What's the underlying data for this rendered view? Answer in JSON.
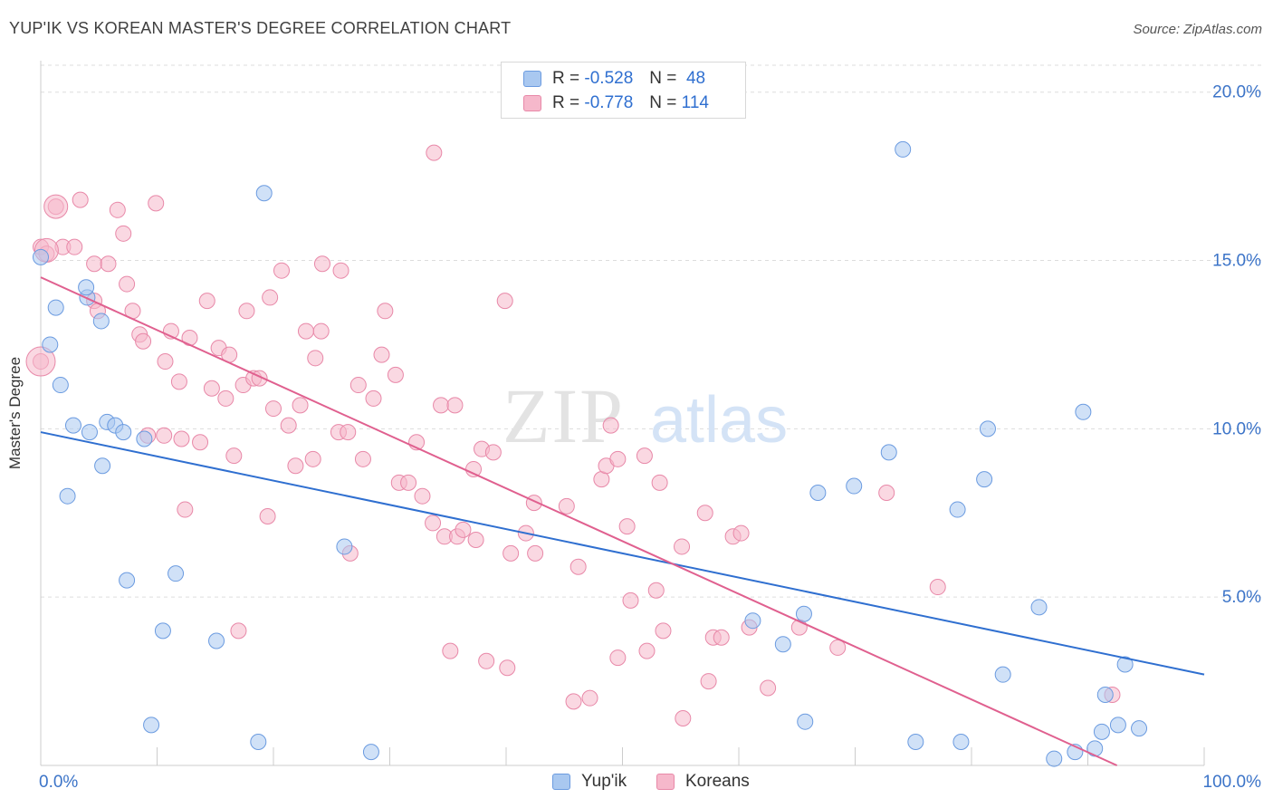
{
  "title": "YUP'IK VS KOREAN MASTER'S DEGREE CORRELATION CHART",
  "source": "Source: ZipAtlas.com",
  "watermark": {
    "zip": "ZIP",
    "atlas": "atlas"
  },
  "legend": {
    "r_label": "R =",
    "n_label": "N =",
    "rows": [
      {
        "r": "-0.528",
        "n": "48"
      },
      {
        "r": "-0.778",
        "n": "114"
      }
    ]
  },
  "colors": {
    "yupik_fill": "#a9c8f0",
    "yupik_stroke": "#6b9be0",
    "yupik_line": "#2f6fd0",
    "korean_fill": "#f6b8cb",
    "korean_stroke": "#e888a8",
    "korean_line": "#e0608f",
    "axis_text": "#3c74c8",
    "grid": "#dddddd"
  },
  "chart_data": {
    "type": "scatter",
    "title": "YUP'IK VS KOREAN MASTER'S DEGREE CORRELATION CHART",
    "xlabel": "",
    "ylabel": "Master's Degree",
    "xlim": [
      0,
      100
    ],
    "ylim": [
      0,
      20.8
    ],
    "x_tick_labels": [
      "0.0%",
      "100.0%"
    ],
    "y_ticks": [
      5,
      10,
      15,
      20
    ],
    "y_tick_labels": [
      "5.0%",
      "10.0%",
      "15.0%",
      "20.0%"
    ],
    "grid": true,
    "legend_position": "bottom-center",
    "series": [
      {
        "name": "Yup'ik",
        "r": -0.528,
        "n": 48,
        "trend": {
          "x": [
            0,
            100
          ],
          "y": [
            9.9,
            2.7
          ]
        },
        "points": [
          [
            0,
            15.1
          ],
          [
            1.3,
            13.6
          ],
          [
            0.8,
            12.5
          ],
          [
            1.7,
            11.3
          ],
          [
            2.8,
            10.1
          ],
          [
            4.2,
            9.9
          ],
          [
            5.7,
            10.2
          ],
          [
            6.4,
            10.1
          ],
          [
            7.1,
            9.9
          ],
          [
            8.9,
            9.7
          ],
          [
            4.0,
            13.9
          ],
          [
            3.9,
            14.2
          ],
          [
            5.2,
            13.2
          ],
          [
            2.3,
            8.0
          ],
          [
            5.3,
            8.9
          ],
          [
            7.4,
            5.5
          ],
          [
            11.6,
            5.7
          ],
          [
            10.5,
            4.0
          ],
          [
            15.1,
            3.7
          ],
          [
            9.5,
            1.2
          ],
          [
            19.2,
            17.0
          ],
          [
            18.7,
            0.7
          ],
          [
            26.1,
            6.5
          ],
          [
            28.4,
            0.4
          ],
          [
            74.1,
            18.3
          ],
          [
            65.6,
            4.5
          ],
          [
            63.8,
            3.6
          ],
          [
            69.9,
            8.3
          ],
          [
            72.9,
            9.3
          ],
          [
            78.8,
            7.6
          ],
          [
            81.1,
            8.5
          ],
          [
            81.4,
            10.0
          ],
          [
            61.2,
            4.3
          ],
          [
            89.6,
            10.5
          ],
          [
            85.8,
            4.7
          ],
          [
            82.7,
            2.7
          ],
          [
            87.1,
            0.2
          ],
          [
            88.9,
            0.4
          ],
          [
            93.2,
            3.0
          ],
          [
            91.5,
            2.1
          ],
          [
            92.6,
            1.2
          ],
          [
            94.4,
            1.1
          ],
          [
            65.7,
            1.3
          ],
          [
            75.2,
            0.7
          ],
          [
            79.1,
            0.7
          ],
          [
            66.8,
            8.1
          ],
          [
            90.6,
            0.5
          ],
          [
            91.2,
            1.0
          ]
        ]
      },
      {
        "name": "Koreans",
        "r": -0.778,
        "n": 114,
        "trend": {
          "x": [
            0,
            92.5
          ],
          "y": [
            14.5,
            0
          ]
        },
        "points": [
          [
            1.3,
            16.6
          ],
          [
            3.4,
            16.8
          ],
          [
            6.6,
            16.5
          ],
          [
            9.9,
            16.7
          ],
          [
            7.1,
            15.8
          ],
          [
            0,
            15.4
          ],
          [
            1.9,
            15.4
          ],
          [
            2.9,
            15.4
          ],
          [
            4.6,
            14.9
          ],
          [
            5.8,
            14.9
          ],
          [
            7.4,
            14.3
          ],
          [
            4.6,
            13.8
          ],
          [
            4.9,
            13.5
          ],
          [
            7.9,
            13.5
          ],
          [
            8.5,
            12.8
          ],
          [
            8.8,
            12.6
          ],
          [
            11.2,
            12.9
          ],
          [
            12.8,
            12.7
          ],
          [
            10.7,
            12.0
          ],
          [
            0,
            12.0
          ],
          [
            14.3,
            13.8
          ],
          [
            15.3,
            12.4
          ],
          [
            16.2,
            12.2
          ],
          [
            17.7,
            13.5
          ],
          [
            19.7,
            13.9
          ],
          [
            20.7,
            14.7
          ],
          [
            23.6,
            12.1
          ],
          [
            22.8,
            12.9
          ],
          [
            24.1,
            12.9
          ],
          [
            24.2,
            14.9
          ],
          [
            25.8,
            14.7
          ],
          [
            11.9,
            11.4
          ],
          [
            14.7,
            11.2
          ],
          [
            15.9,
            10.9
          ],
          [
            17.4,
            11.3
          ],
          [
            18.3,
            11.5
          ],
          [
            18.8,
            11.5
          ],
          [
            20.0,
            10.6
          ],
          [
            22.3,
            10.7
          ],
          [
            21.3,
            10.1
          ],
          [
            9.2,
            9.8
          ],
          [
            10.6,
            9.8
          ],
          [
            12.1,
            9.7
          ],
          [
            13.7,
            9.6
          ],
          [
            16.6,
            9.2
          ],
          [
            12.4,
            7.6
          ],
          [
            19.5,
            7.4
          ],
          [
            21.9,
            8.9
          ],
          [
            23.4,
            9.1
          ],
          [
            25.6,
            9.9
          ],
          [
            26.4,
            9.9
          ],
          [
            27.7,
            9.1
          ],
          [
            27.3,
            11.3
          ],
          [
            28.6,
            10.9
          ],
          [
            29.3,
            12.2
          ],
          [
            29.6,
            13.5
          ],
          [
            30.5,
            11.6
          ],
          [
            30.8,
            8.4
          ],
          [
            31.6,
            8.4
          ],
          [
            32.3,
            9.6
          ],
          [
            32.8,
            8.0
          ],
          [
            33.7,
            7.2
          ],
          [
            34.4,
            10.7
          ],
          [
            34.7,
            6.8
          ],
          [
            35.8,
            6.8
          ],
          [
            36.3,
            7.0
          ],
          [
            35.6,
            10.7
          ],
          [
            37.2,
            8.8
          ],
          [
            37.4,
            6.7
          ],
          [
            37.9,
            9.4
          ],
          [
            38.9,
            9.3
          ],
          [
            33.8,
            18.2
          ],
          [
            39.9,
            13.8
          ],
          [
            40.4,
            6.3
          ],
          [
            41.7,
            6.9
          ],
          [
            42.4,
            7.8
          ],
          [
            42.5,
            6.3
          ],
          [
            45.2,
            7.7
          ],
          [
            46.2,
            5.9
          ],
          [
            48.2,
            8.5
          ],
          [
            48.6,
            8.9
          ],
          [
            49.0,
            10.1
          ],
          [
            49.6,
            9.1
          ],
          [
            50.4,
            7.1
          ],
          [
            51.9,
            9.2
          ],
          [
            52.9,
            5.2
          ],
          [
            53.2,
            8.4
          ],
          [
            53.5,
            4.0
          ],
          [
            55.1,
            6.5
          ],
          [
            57.1,
            7.5
          ],
          [
            57.8,
            3.8
          ],
          [
            58.5,
            3.8
          ],
          [
            59.5,
            6.8
          ],
          [
            60.2,
            6.9
          ],
          [
            60.9,
            4.1
          ],
          [
            65.2,
            4.1
          ],
          [
            68.5,
            3.5
          ],
          [
            72.7,
            8.1
          ],
          [
            77.1,
            5.3
          ],
          [
            50.7,
            4.9
          ],
          [
            38.3,
            3.1
          ],
          [
            35.2,
            3.4
          ],
          [
            40.1,
            2.9
          ],
          [
            49.6,
            3.2
          ],
          [
            52.1,
            3.4
          ],
          [
            57.4,
            2.5
          ],
          [
            62.5,
            2.3
          ],
          [
            47.2,
            2.0
          ],
          [
            55.2,
            1.4
          ],
          [
            92.1,
            2.1
          ],
          [
            0.5,
            15.2
          ],
          [
            17.0,
            4.0
          ],
          [
            45.8,
            1.9
          ],
          [
            26.6,
            6.3
          ]
        ]
      }
    ]
  },
  "bottom_legend": [
    "Yup'ik",
    "Koreans"
  ]
}
